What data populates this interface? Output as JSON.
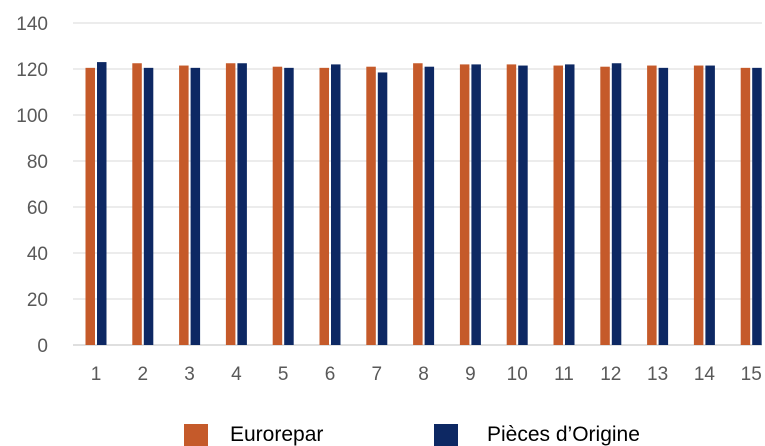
{
  "chart_data": {
    "type": "bar",
    "title": "",
    "xlabel": "",
    "ylabel": "",
    "categories": [
      "1",
      "2",
      "3",
      "4",
      "5",
      "6",
      "7",
      "8",
      "9",
      "10",
      "11",
      "12",
      "13",
      "14",
      "15"
    ],
    "series": [
      {
        "name": "Eurorepar",
        "color": "#c55a2a",
        "values": [
          120.5,
          122.5,
          121.5,
          122.5,
          121,
          120.5,
          121,
          122.5,
          122,
          122,
          121.5,
          121,
          121.5,
          121.5,
          120.5
        ]
      },
      {
        "name": "Pièces d’Origine",
        "color": "#0d2863",
        "values": [
          123,
          120.5,
          120.5,
          122.5,
          120.5,
          122,
          118.5,
          121,
          122,
          121.5,
          122,
          122.5,
          120.5,
          121.5,
          120.5
        ]
      }
    ],
    "ylim": [
      0,
      140
    ],
    "yticks": [
      0,
      20,
      40,
      60,
      80,
      100,
      120,
      140
    ],
    "grid": true,
    "legend_position": "bottom"
  }
}
